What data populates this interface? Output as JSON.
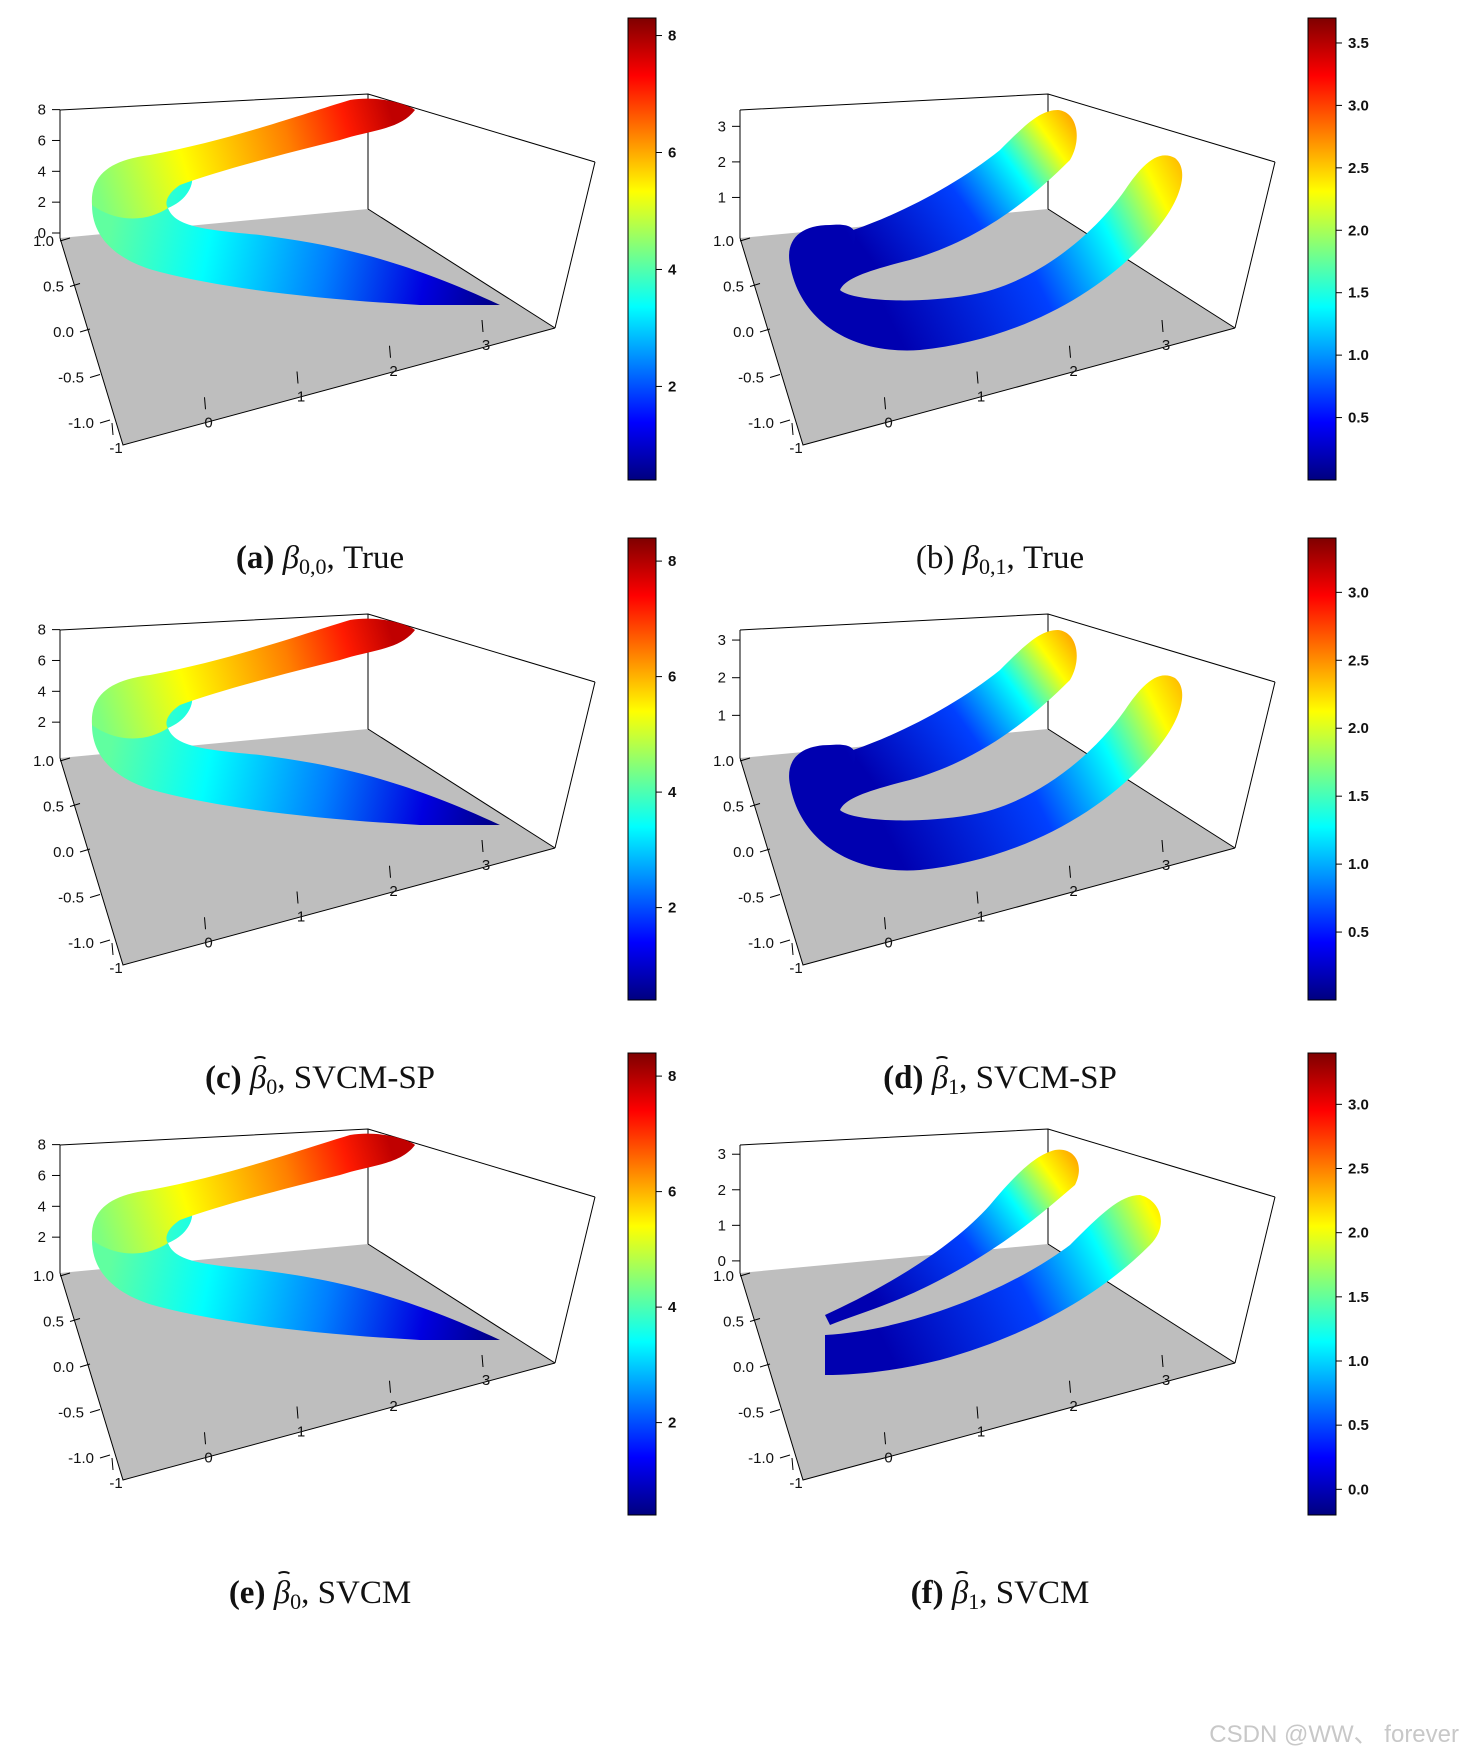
{
  "chart_data": [
    {
      "id": "a",
      "type": "surface3d",
      "caption": {
        "letter": "(a)",
        "letter_bold": true,
        "symbol": "β",
        "hat": false,
        "subscript": "0,0",
        "suffix": ", True"
      },
      "x_ticks": [
        "-1",
        "0",
        "1",
        "2",
        "3"
      ],
      "y_ticks": [
        "-1.0",
        "-0.5",
        "0.0",
        "0.5",
        "1.0"
      ],
      "z_ticks": [
        "0",
        "2",
        "4",
        "6",
        "8"
      ],
      "zlim": [
        0,
        8.3
      ],
      "colorbar": {
        "ticks": [
          "2",
          "4",
          "6",
          "8"
        ],
        "range": [
          0.4,
          8.3
        ]
      },
      "legend_placement": "right"
    },
    {
      "id": "b",
      "type": "surface3d",
      "caption": {
        "letter": "(b)",
        "letter_bold": false,
        "symbol": "β",
        "hat": false,
        "subscript": "0,1",
        "suffix": ", True"
      },
      "x_ticks": [
        "-1",
        "0",
        "1",
        "2",
        "3"
      ],
      "y_ticks": [
        "-1.0",
        "-0.5",
        "0.0",
        "0.5",
        "1.0"
      ],
      "z_ticks": [
        "1",
        "2",
        "3"
      ],
      "zlim": [
        0,
        3.6
      ],
      "colorbar": {
        "ticks": [
          "0.5",
          "1.0",
          "1.5",
          "2.0",
          "2.5",
          "3.0",
          "3.5"
        ],
        "range": [
          0.0,
          3.7
        ]
      },
      "legend_placement": "right"
    },
    {
      "id": "c",
      "type": "surface3d",
      "caption": {
        "letter": "(c)",
        "letter_bold": true,
        "symbol": "β",
        "hat": true,
        "subscript": "0",
        "suffix": ", SVCM-SP"
      },
      "x_ticks": [
        "-1",
        "0",
        "1",
        "2",
        "3"
      ],
      "y_ticks": [
        "-1.0",
        "-0.5",
        "0.0",
        "0.5",
        "1.0"
      ],
      "z_ticks": [
        "2",
        "4",
        "6",
        "8"
      ],
      "zlim": [
        0,
        8.3
      ],
      "colorbar": {
        "ticks": [
          "2",
          "4",
          "6",
          "8"
        ],
        "range": [
          0.4,
          8.4
        ]
      },
      "legend_placement": "right"
    },
    {
      "id": "d",
      "type": "surface3d",
      "caption": {
        "letter": "(d)",
        "letter_bold": true,
        "symbol": "β",
        "hat": true,
        "subscript": "1",
        "suffix": ", SVCM-SP"
      },
      "x_ticks": [
        "-1",
        "0",
        "1",
        "2",
        "3"
      ],
      "y_ticks": [
        "-1.0",
        "-0.5",
        "0.0",
        "0.5",
        "1.0"
      ],
      "z_ticks": [
        "1",
        "2",
        "3"
      ],
      "zlim": [
        0,
        3.4
      ],
      "colorbar": {
        "ticks": [
          "0.5",
          "1.0",
          "1.5",
          "2.0",
          "2.5",
          "3.0"
        ],
        "range": [
          0.0,
          3.4
        ]
      },
      "legend_placement": "right"
    },
    {
      "id": "e",
      "type": "surface3d",
      "caption": {
        "letter": "(e)",
        "letter_bold": true,
        "symbol": "β",
        "hat": true,
        "subscript": "0",
        "suffix": ", SVCM"
      },
      "x_ticks": [
        "-1",
        "0",
        "1",
        "2",
        "3"
      ],
      "y_ticks": [
        "-1.0",
        "-0.5",
        "0.0",
        "0.5",
        "1.0"
      ],
      "z_ticks": [
        "2",
        "4",
        "6",
        "8"
      ],
      "zlim": [
        0,
        8.3
      ],
      "colorbar": {
        "ticks": [
          "2",
          "4",
          "6",
          "8"
        ],
        "range": [
          0.4,
          8.4
        ]
      },
      "legend_placement": "right"
    },
    {
      "id": "f",
      "type": "surface3d",
      "caption": {
        "letter": "(f)",
        "letter_bold": true,
        "symbol": "β",
        "hat": true,
        "subscript": "1",
        "suffix": ", SVCM"
      },
      "x_ticks": [
        "-1",
        "0",
        "1",
        "2",
        "3"
      ],
      "y_ticks": [
        "-1.0",
        "-0.5",
        "0.0",
        "0.5",
        "1.0"
      ],
      "z_ticks": [
        "0",
        "1",
        "2",
        "3"
      ],
      "zlim": [
        -0.2,
        3.4
      ],
      "colorbar": {
        "ticks": [
          "0.0",
          "0.5",
          "1.0",
          "1.5",
          "2.0",
          "2.5",
          "3.0"
        ],
        "range": [
          -0.2,
          3.4
        ]
      },
      "legend_placement": "right"
    }
  ],
  "colors": {
    "jet": [
      "#00007f",
      "#0000ff",
      "#007fff",
      "#00ffff",
      "#7fff7f",
      "#ffff00",
      "#ff7f00",
      "#ff0000",
      "#7f0000"
    ],
    "floor": "#bebebe",
    "axis": "#000000"
  },
  "watermark": "CSDN @WW、 forever"
}
